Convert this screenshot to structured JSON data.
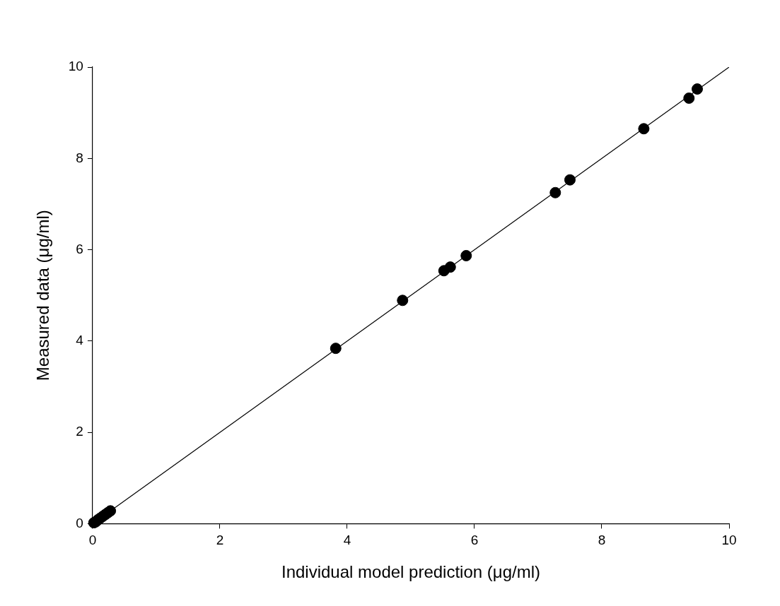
{
  "chart_data": {
    "type": "scatter",
    "x_label": "Individual model prediction (μg/ml)",
    "y_label": "Measured data (μg/ml)",
    "xlim": [
      0,
      10
    ],
    "ylim": [
      0,
      10
    ],
    "xticks": [
      0,
      2,
      4,
      6,
      8,
      10
    ],
    "yticks": [
      0,
      2,
      4,
      6,
      8,
      10
    ],
    "grid": false,
    "series": [
      {
        "type": "scatter",
        "marker": "circle",
        "color": "#000000",
        "x": [
          0.02,
          0.05,
          0.08,
          0.12,
          0.16,
          0.2,
          0.24,
          0.28,
          3.82,
          4.87,
          5.52,
          5.62,
          5.87,
          7.27,
          7.5,
          8.66,
          9.37,
          9.5
        ],
        "values": [
          0.02,
          0.04,
          0.08,
          0.12,
          0.16,
          0.2,
          0.24,
          0.28,
          3.84,
          4.89,
          5.54,
          5.62,
          5.87,
          7.25,
          7.53,
          8.65,
          9.32,
          9.52
        ]
      },
      {
        "type": "line",
        "line_style": "solid",
        "color": "#000000",
        "x": [
          0,
          10
        ],
        "values": [
          0,
          10
        ]
      }
    ]
  }
}
